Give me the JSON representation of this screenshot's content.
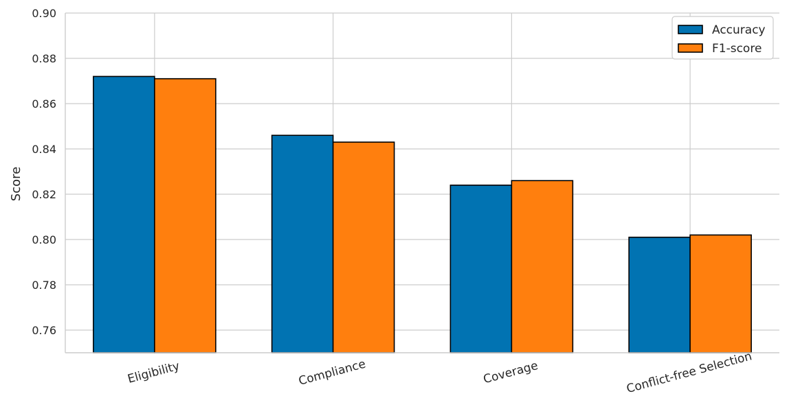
{
  "chart_data": {
    "type": "bar",
    "title": "",
    "xlabel": "",
    "ylabel": "Score",
    "ylim": [
      0.75,
      0.9
    ],
    "yticks": [
      "0.76",
      "0.78",
      "0.80",
      "0.82",
      "0.84",
      "0.86",
      "0.88",
      "0.90"
    ],
    "categories": [
      "Eligibility",
      "Compliance",
      "Coverage",
      "Conflict-free Selection"
    ],
    "series": [
      {
        "name": "Accuracy",
        "color": "#0173b2",
        "values": [
          0.872,
          0.846,
          0.824,
          0.801
        ]
      },
      {
        "name": "F1-score",
        "color": "#ff7f0e",
        "values": [
          0.871,
          0.843,
          0.826,
          0.802
        ]
      }
    ],
    "grid": true,
    "legend": "top-right"
  }
}
